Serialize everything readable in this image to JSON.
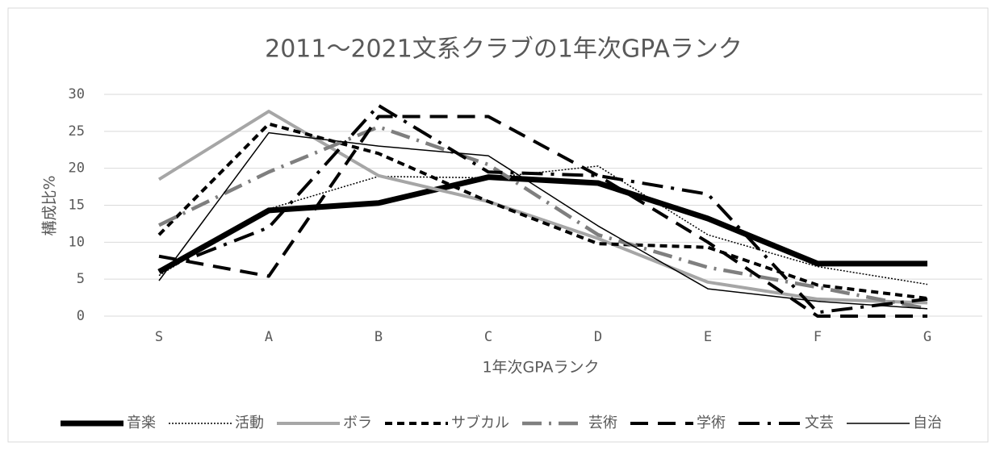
{
  "chart_data": {
    "type": "line",
    "title": "2011～2021文系クラブの1年次GPAランク",
    "x_label": "1年次GPAランク",
    "y_label": "構成比%",
    "categories": [
      "S",
      "A",
      "B",
      "C",
      "D",
      "E",
      "F",
      "G"
    ],
    "ylim": [
      0,
      30
    ],
    "yticks": [
      0,
      5,
      10,
      15,
      20,
      25,
      30
    ],
    "grid": true,
    "legend": "bottom",
    "series": [
      {
        "name": "音楽",
        "color": "#000000",
        "values": [
          6,
          14.3,
          15.3,
          18.8,
          18,
          13.2,
          7.1,
          7.1
        ]
      },
      {
        "name": "活動",
        "color": "#000000",
        "values": [
          5.5,
          14.5,
          18.9,
          18.7,
          20.3,
          11,
          6.7,
          4.3
        ]
      },
      {
        "name": "ボラ",
        "color": "#a6a6a6",
        "values": [
          18.5,
          27.7,
          19,
          15.5,
          10.5,
          4.6,
          2.3,
          1.8
        ]
      },
      {
        "name": "サブカル",
        "color": "#000000",
        "values": [
          11,
          26,
          22,
          15.5,
          9.8,
          9.3,
          4.2,
          2.4
        ]
      },
      {
        "name": "芸術",
        "color": "#7f7f7f",
        "values": [
          12.3,
          19.5,
          25.6,
          20.5,
          11,
          6.6,
          3.9,
          1
        ]
      },
      {
        "name": "学術",
        "color": "#000000",
        "values": [
          8.1,
          5.4,
          27,
          27,
          19,
          10,
          0,
          0
        ]
      },
      {
        "name": "文芸",
        "color": "#000000",
        "values": [
          6.2,
          12,
          28.5,
          19.5,
          19,
          16.5,
          0.5,
          2.3
        ]
      },
      {
        "name": "自治",
        "color": "#000000",
        "values": [
          4.8,
          24.8,
          23,
          21.7,
          12.2,
          3.7,
          2,
          1
        ]
      }
    ]
  }
}
